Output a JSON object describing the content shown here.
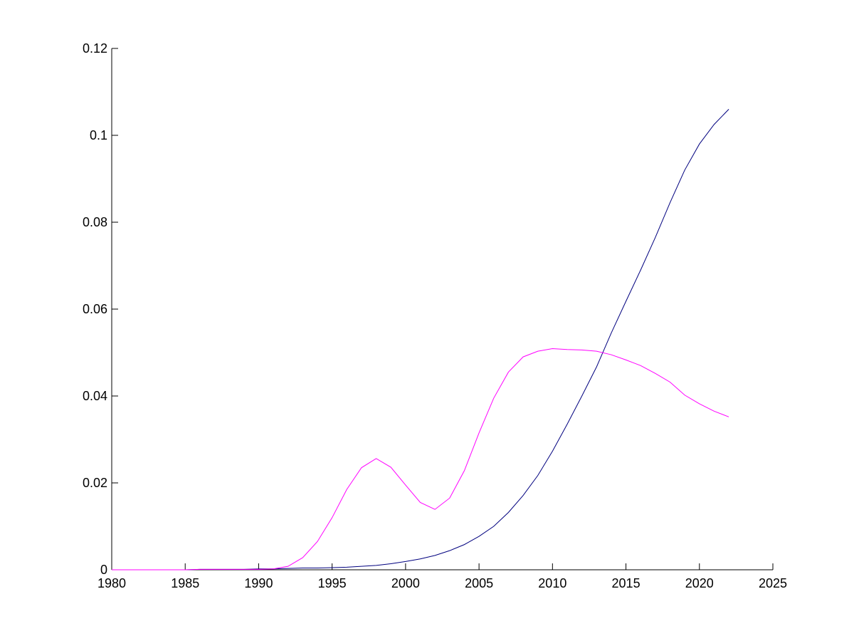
{
  "chart_data": {
    "type": "line",
    "x": [
      1980,
      1981,
      1982,
      1983,
      1984,
      1985,
      1986,
      1987,
      1988,
      1989,
      1990,
      1991,
      1992,
      1993,
      1994,
      1995,
      1996,
      1997,
      1998,
      1999,
      2000,
      2001,
      2002,
      2003,
      2004,
      2005,
      2006,
      2007,
      2008,
      2009,
      2010,
      2011,
      2012,
      2013,
      2014,
      2015,
      2016,
      2017,
      2018,
      2019,
      2020,
      2021,
      2022
    ],
    "series": [
      {
        "color": "#00007f",
        "values": [
          0,
          0,
          0,
          0,
          0,
          0,
          0.0001,
          0.0001,
          0.0001,
          0.0001,
          0.0002,
          0.0002,
          0.0003,
          0.0004,
          0.0004,
          0.0005,
          0.0006,
          0.0008,
          0.001,
          0.0014,
          0.0019,
          0.0025,
          0.0033,
          0.0044,
          0.0058,
          0.0077,
          0.01,
          0.0132,
          0.0171,
          0.0217,
          0.0273,
          0.0335,
          0.04,
          0.0467,
          0.0545,
          0.0618,
          0.069,
          0.0765,
          0.0845,
          0.092,
          0.098,
          0.1025,
          0.106
        ]
      },
      {
        "color": "#ff00ff",
        "values": [
          0,
          0,
          0,
          0,
          0,
          0,
          0.0001,
          0.0001,
          0.0001,
          0.0001,
          0.0001,
          0.0002,
          0.0008,
          0.0028,
          0.0065,
          0.012,
          0.0185,
          0.0235,
          0.0256,
          0.0236,
          0.0195,
          0.0155,
          0.0139,
          0.0165,
          0.0228,
          0.0315,
          0.0395,
          0.0455,
          0.049,
          0.0503,
          0.0509,
          0.0507,
          0.0506,
          0.0503,
          0.0495,
          0.0483,
          0.047,
          0.0452,
          0.0432,
          0.0402,
          0.0382,
          0.0365,
          0.0352
        ]
      }
    ],
    "xlim": [
      1980,
      2025
    ],
    "xticks": [
      1980,
      1985,
      1990,
      1995,
      2000,
      2005,
      2010,
      2015,
      2020,
      2025
    ],
    "ylim": [
      0,
      0.12
    ],
    "yticks": [
      0,
      0.02,
      0.04,
      0.06,
      0.08,
      0.1,
      0.12
    ]
  }
}
